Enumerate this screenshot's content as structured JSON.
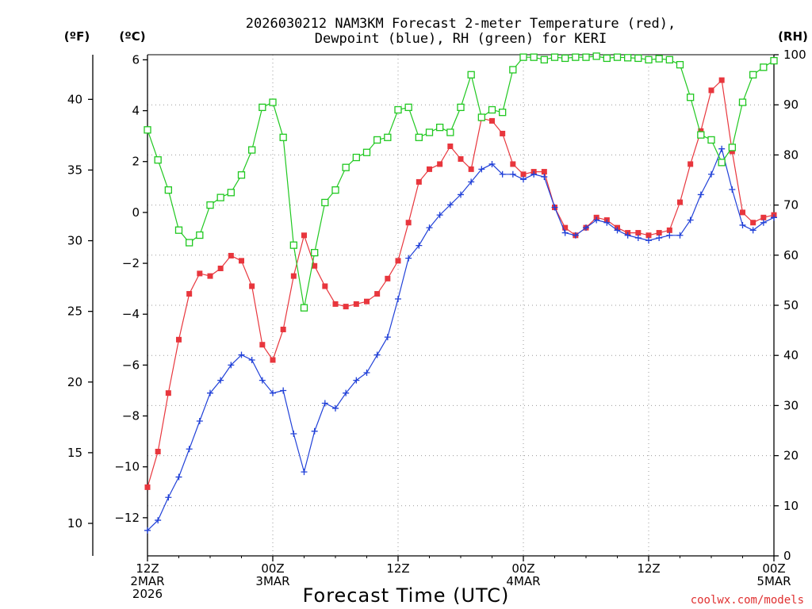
{
  "chart_data": {
    "type": "line",
    "title": [
      "2026030212 NAM3KM Forecast 2-meter Temperature (red),",
      "Dewpoint (blue), RH (green) for KERI"
    ],
    "xlabel": "Forecast Time (UTC)",
    "watermark": "coolwx.com/models",
    "units": {
      "fahrenheit": "(ºF)",
      "celsius": "(ºC)",
      "rh": "(RH)"
    },
    "x_hours": {
      "start": 0,
      "end": 60,
      "step": 1
    },
    "x_ticks": [
      {
        "hour": 0,
        "lines": [
          "12Z",
          "2MAR",
          "2026"
        ]
      },
      {
        "hour": 12,
        "lines": [
          "00Z",
          "3MAR"
        ]
      },
      {
        "hour": 24,
        "lines": [
          "12Z"
        ]
      },
      {
        "hour": 36,
        "lines": [
          "00Z",
          "4MAR"
        ]
      },
      {
        "hour": 48,
        "lines": [
          "12Z"
        ]
      },
      {
        "hour": 60,
        "lines": [
          "00Z",
          "5MAR"
        ]
      }
    ],
    "y_left_celsius": {
      "range": [
        -13.5,
        6.2
      ],
      "ticks": [
        -12,
        -10,
        -8,
        -6,
        -4,
        -2,
        0,
        2,
        4,
        6
      ]
    },
    "y_left_fahrenheit": {
      "ticks": [
        10,
        15,
        20,
        25,
        30,
        35,
        40
      ]
    },
    "y_right_rh": {
      "range": [
        0,
        100
      ],
      "ticks": [
        0,
        10,
        20,
        30,
        40,
        50,
        60,
        70,
        80,
        90,
        100
      ]
    },
    "grid": true,
    "colors": {
      "temperature": "#e8363d",
      "dewpoint": "#2040d8",
      "rh": "#20c820",
      "grid": "#9a9a9a"
    },
    "series": [
      {
        "key": "temperature",
        "axis": "celsius",
        "marker": "filled-square",
        "values": [
          -10.8,
          -9.4,
          -7.1,
          -5.0,
          -3.2,
          -2.4,
          -2.5,
          -2.2,
          -1.7,
          -1.9,
          -2.9,
          -5.2,
          -5.8,
          -4.6,
          -2.5,
          -0.9,
          -2.1,
          -2.9,
          -3.6,
          -3.7,
          -3.6,
          -3.5,
          -3.2,
          -2.6,
          -1.9,
          -0.4,
          1.2,
          1.7,
          1.9,
          2.6,
          2.1,
          1.7,
          3.7,
          3.6,
          3.1,
          1.9,
          1.5,
          1.6,
          1.6,
          0.2,
          -0.6,
          -0.9,
          -0.6,
          -0.2,
          -0.3,
          -0.6,
          -0.8,
          -0.8,
          -0.9,
          -0.8,
          -0.7,
          0.4,
          1.9,
          3.2,
          4.8,
          5.2,
          2.4,
          0.0,
          -0.4,
          -0.2,
          -0.1
        ]
      },
      {
        "key": "dewpoint",
        "axis": "celsius",
        "marker": "plus",
        "values": [
          -12.5,
          -12.1,
          -11.2,
          -10.4,
          -9.3,
          -8.2,
          -7.1,
          -6.6,
          -6.0,
          -5.6,
          -5.8,
          -6.6,
          -7.1,
          -7.0,
          -8.7,
          -10.2,
          -8.6,
          -7.5,
          -7.7,
          -7.1,
          -6.6,
          -6.3,
          -5.6,
          -4.9,
          -3.4,
          -1.8,
          -1.3,
          -0.6,
          -0.1,
          0.3,
          0.7,
          1.2,
          1.7,
          1.9,
          1.5,
          1.5,
          1.3,
          1.5,
          1.4,
          0.2,
          -0.8,
          -0.9,
          -0.6,
          -0.3,
          -0.4,
          -0.7,
          -0.9,
          -1.0,
          -1.1,
          -1.0,
          -0.9,
          -0.9,
          -0.3,
          0.7,
          1.5,
          2.5,
          0.9,
          -0.5,
          -0.7,
          -0.4,
          -0.2
        ]
      },
      {
        "key": "rh",
        "axis": "rh",
        "marker": "open-square",
        "values": [
          85,
          79,
          73,
          65,
          62.5,
          64,
          70,
          71.5,
          72.5,
          76,
          81,
          89.5,
          90.5,
          83.5,
          62,
          49.5,
          60.5,
          70.5,
          73,
          77.5,
          79.5,
          80.5,
          83,
          83.5,
          89,
          89.5,
          83.5,
          84.5,
          85.5,
          84.5,
          89.5,
          96,
          87.5,
          89,
          88.5,
          97,
          99.5,
          99.5,
          99,
          99.5,
          99.3,
          99.5,
          99.5,
          99.7,
          99.3,
          99.5,
          99.4,
          99.3,
          99,
          99.2,
          99,
          98,
          91.5,
          84,
          83,
          78.5,
          81.5,
          90.5,
          96,
          97.5,
          98.8
        ]
      }
    ]
  }
}
